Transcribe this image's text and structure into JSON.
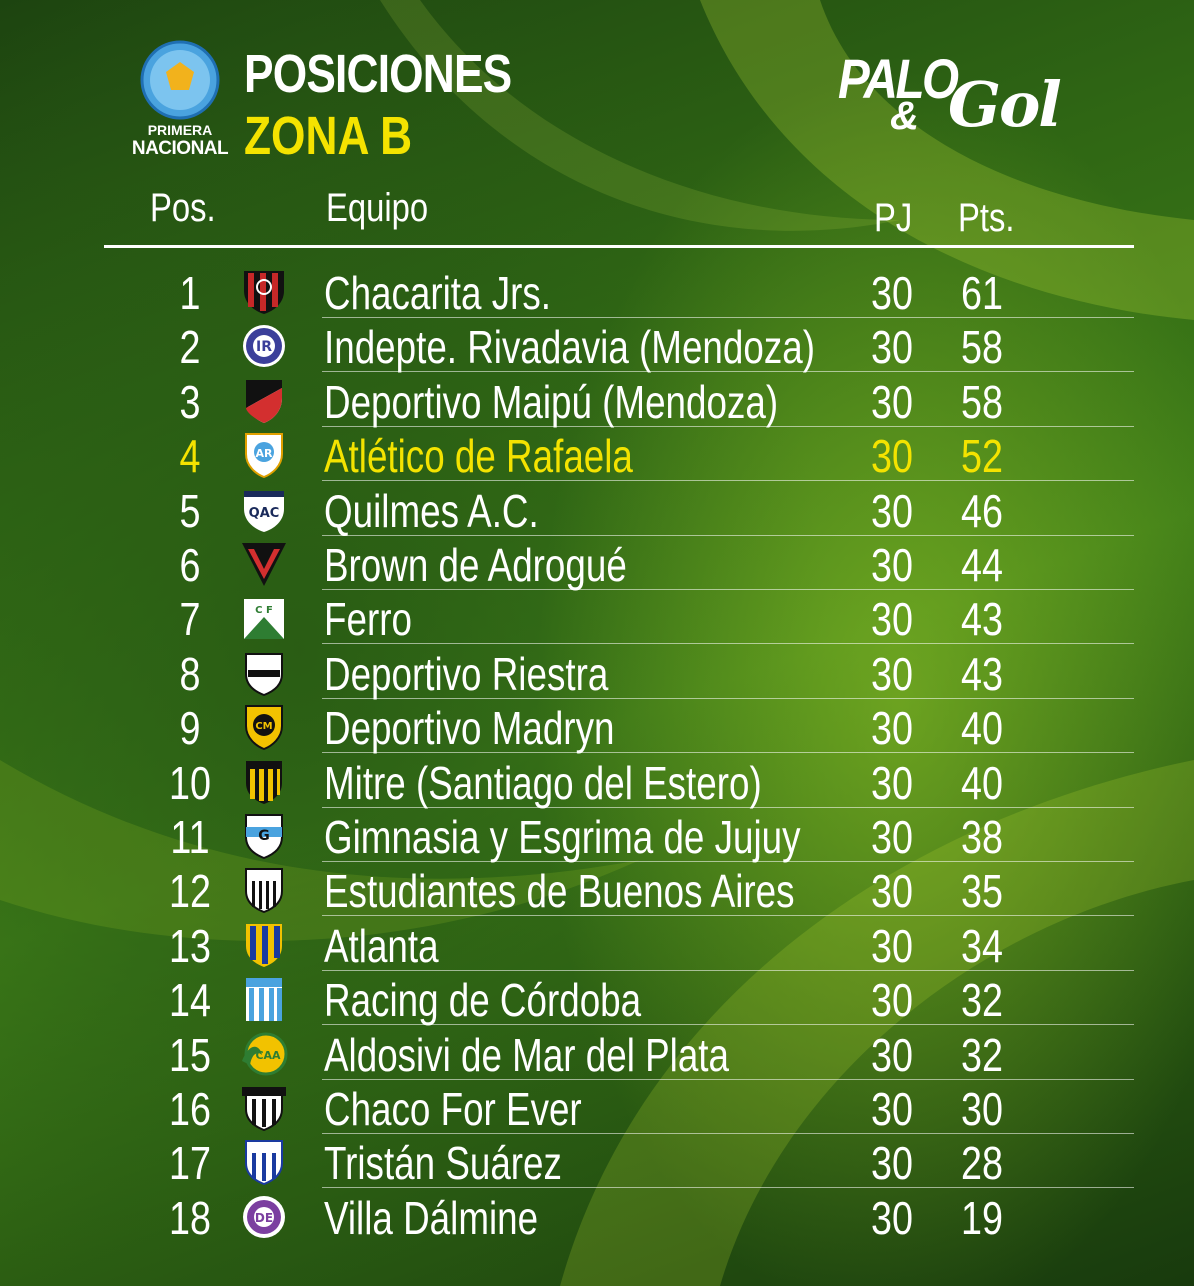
{
  "header": {
    "league_name_line1": "PRIMERA",
    "league_name_line2": "NACIONAL",
    "title": "POSICIONES",
    "subtitle": "ZONA B",
    "brand_line1": "PALO",
    "brand_amp": "&",
    "brand_line2": "Gol"
  },
  "columns": {
    "pos": "Pos.",
    "team": "Equipo",
    "pj": "PJ",
    "pts": "Pts."
  },
  "colors": {
    "highlight": "#f4e300",
    "text": "#ffffff",
    "background": "#2f6614"
  },
  "rows": [
    {
      "pos": "1",
      "team": "Chacarita Jrs.",
      "pj": "30",
      "pts": "61",
      "crest": "chacarita-crest"
    },
    {
      "pos": "2",
      "team": "Indepte. Rivadavia (Mendoza)",
      "pj": "30",
      "pts": "58",
      "crest": "independiente-rivadavia-crest"
    },
    {
      "pos": "3",
      "team": "Deportivo Maipú (Mendoza)",
      "pj": "30",
      "pts": "58",
      "crest": "deportivo-maipu-crest"
    },
    {
      "pos": "4",
      "team": "Atlético de Rafaela",
      "pj": "30",
      "pts": "52",
      "crest": "atletico-rafaela-crest",
      "highlight": true
    },
    {
      "pos": "5",
      "team": "Quilmes A.C.",
      "pj": "30",
      "pts": "46",
      "crest": "quilmes-crest"
    },
    {
      "pos": "6",
      "team": "Brown de Adrogué",
      "pj": "30",
      "pts": "44",
      "crest": "brown-adrogue-crest"
    },
    {
      "pos": "7",
      "team": "Ferro",
      "pj": "30",
      "pts": "43",
      "crest": "ferro-crest"
    },
    {
      "pos": "8",
      "team": "Deportivo Riestra",
      "pj": "30",
      "pts": "43",
      "crest": "deportivo-riestra-crest"
    },
    {
      "pos": "9",
      "team": "Deportivo Madryn",
      "pj": "30",
      "pts": "40",
      "crest": "deportivo-madryn-crest"
    },
    {
      "pos": "10",
      "team": "Mitre (Santiago del Estero)",
      "pj": "30",
      "pts": "40",
      "crest": "mitre-crest"
    },
    {
      "pos": "11",
      "team": "Gimnasia y Esgrima de Jujuy",
      "pj": "30",
      "pts": "38",
      "crest": "gimnasia-jujuy-crest"
    },
    {
      "pos": "12",
      "team": "Estudiantes de Buenos Aires",
      "pj": "30",
      "pts": "35",
      "crest": "estudiantes-ba-crest"
    },
    {
      "pos": "13",
      "team": "Atlanta",
      "pj": "30",
      "pts": "34",
      "crest": "atlanta-crest"
    },
    {
      "pos": "14",
      "team": "Racing de Córdoba",
      "pj": "30",
      "pts": "32",
      "crest": "racing-cordoba-crest"
    },
    {
      "pos": "15",
      "team": "Aldosivi de Mar del Plata",
      "pj": "30",
      "pts": "32",
      "crest": "aldosivi-crest"
    },
    {
      "pos": "16",
      "team": "Chaco For Ever",
      "pj": "30",
      "pts": "30",
      "crest": "chaco-for-ever-crest"
    },
    {
      "pos": "17",
      "team": "Tristán Suárez",
      "pj": "30",
      "pts": "28",
      "crest": "tristan-suarez-crest"
    },
    {
      "pos": "18",
      "team": "Villa Dálmine",
      "pj": "30",
      "pts": "19",
      "crest": "villa-dalmine-crest"
    }
  ]
}
